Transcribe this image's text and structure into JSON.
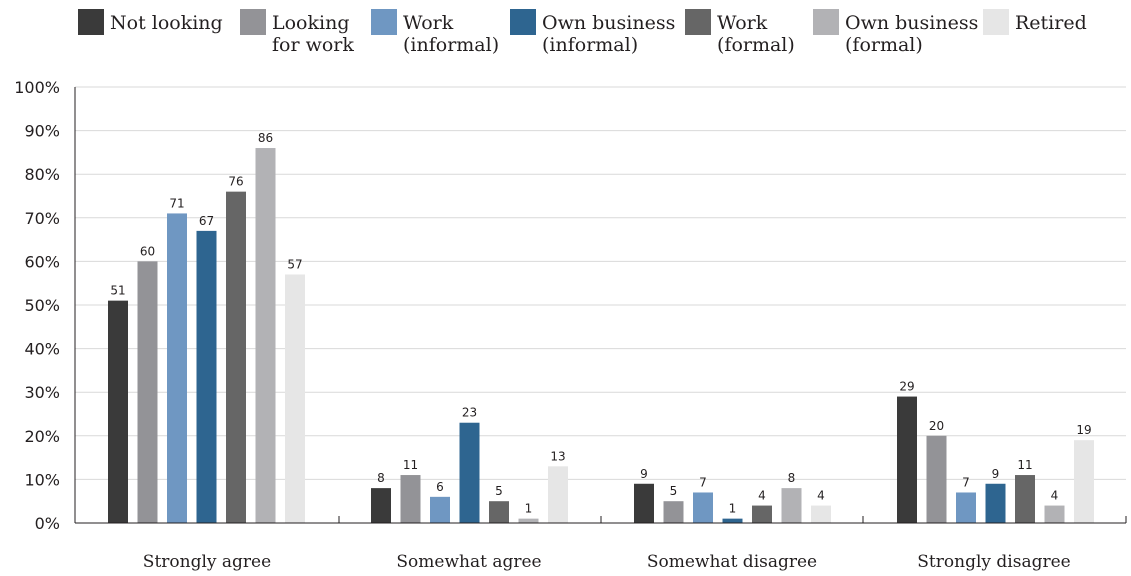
{
  "chart_data": {
    "type": "bar",
    "categories": [
      "Strongly agree",
      "Somewhat agree",
      "Somewhat disagree",
      "Strongly disagree"
    ],
    "series": [
      {
        "name": "Not looking",
        "legend_lines": [
          "Not looking"
        ],
        "color": "#3a3a3a",
        "values": [
          51,
          8,
          9,
          29
        ]
      },
      {
        "name": "Looking for work",
        "legend_lines": [
          "Looking",
          "for work"
        ],
        "color": "#939397",
        "values": [
          60,
          11,
          5,
          20
        ]
      },
      {
        "name": "Work (informal)",
        "legend_lines": [
          "Work",
          "(informal)"
        ],
        "color": "#6f97c2",
        "values": [
          71,
          6,
          7,
          7
        ]
      },
      {
        "name": "Own business (informal)",
        "legend_lines": [
          "Own business",
          "(informal)"
        ],
        "color": "#2e6590",
        "values": [
          67,
          23,
          1,
          9
        ]
      },
      {
        "name": "Work (formal)",
        "legend_lines": [
          "Work",
          "(formal)"
        ],
        "color": "#666666",
        "values": [
          76,
          5,
          4,
          11
        ]
      },
      {
        "name": "Own business (formal)",
        "legend_lines": [
          "Own business",
          "(formal)"
        ],
        "color": "#b2b2b5",
        "values": [
          86,
          1,
          8,
          4
        ]
      },
      {
        "name": "Retired",
        "legend_lines": [
          "Retired"
        ],
        "color": "#e6e6e6",
        "values": [
          57,
          13,
          4,
          19
        ]
      }
    ],
    "ylim": [
      0,
      100
    ],
    "yticks": [
      0,
      10,
      20,
      30,
      40,
      50,
      60,
      70,
      80,
      90,
      100
    ],
    "ytick_labels": [
      "0%",
      "10%",
      "20%",
      "30%",
      "40%",
      "50%",
      "60%",
      "70%",
      "80%",
      "90%",
      "100%"
    ],
    "grid": true,
    "legend_position": "top",
    "title": "",
    "xlabel": "",
    "ylabel": ""
  }
}
